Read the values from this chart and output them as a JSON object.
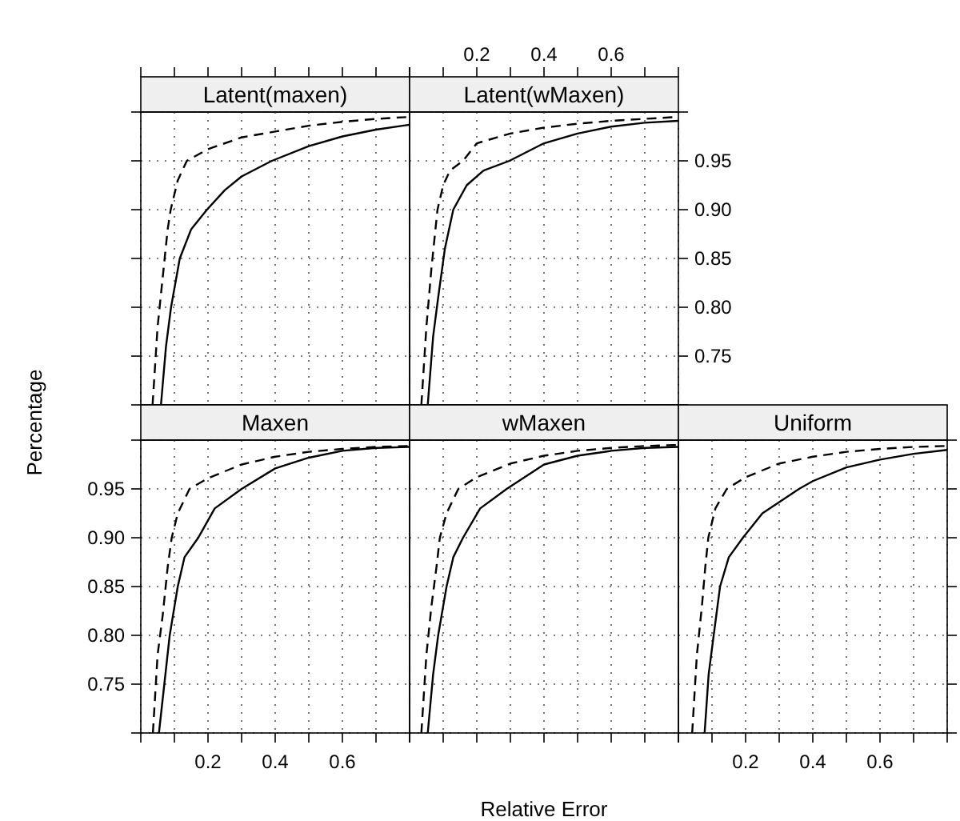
{
  "chart_data": [
    {
      "type": "line",
      "title": "Latent(maxen)",
      "xlim": [
        0,
        0.8
      ],
      "xticks": [
        0,
        0.1,
        0.2,
        0.3,
        0.4,
        0.5,
        0.6,
        0.7,
        0.8
      ],
      "ylim": [
        0.7,
        1.0
      ],
      "yticks": [
        0.7,
        0.75,
        0.8,
        0.85,
        0.9,
        0.95,
        1.0
      ],
      "tick_labels": false,
      "grid": true,
      "series": [
        {
          "color": "#000000",
          "line_style": "solid",
          "x": [
            0.06,
            0.075,
            0.09,
            0.116,
            0.15,
            0.197,
            0.25,
            0.3,
            0.39,
            0.5,
            0.6,
            0.7,
            0.8
          ],
          "values": [
            0.7,
            0.76,
            0.8,
            0.85,
            0.88,
            0.9,
            0.92,
            0.934,
            0.95,
            0.965,
            0.975,
            0.982,
            0.987
          ]
        },
        {
          "color": "#000000",
          "line_style": "dashed",
          "x": [
            0.035,
            0.05,
            0.065,
            0.08,
            0.089,
            0.11,
            0.137,
            0.2,
            0.3,
            0.4,
            0.5,
            0.6,
            0.7,
            0.8
          ],
          "values": [
            0.7,
            0.78,
            0.83,
            0.88,
            0.9,
            0.93,
            0.95,
            0.962,
            0.974,
            0.98,
            0.986,
            0.99,
            0.993,
            0.995
          ]
        }
      ]
    },
    {
      "type": "line",
      "title": "Latent(wMaxen)",
      "xlim": [
        0,
        0.8
      ],
      "xticks": [
        {
          "value": 0,
          "label": null
        },
        {
          "value": 0.1,
          "label": null
        },
        0.2,
        {
          "value": 0.3,
          "label": null
        },
        0.4,
        {
          "value": 0.5,
          "label": null
        },
        0.6,
        {
          "value": 0.7,
          "label": null
        },
        {
          "value": 0.8,
          "label": null
        }
      ],
      "ylim": [
        0.7,
        1.0
      ],
      "yticks": [
        {
          "value": 0.7,
          "label": null
        },
        0.75,
        {
          "value": 0.8,
          "label": "0.80"
        },
        0.85,
        {
          "value": 0.9,
          "label": "0.90"
        },
        0.95,
        {
          "value": 1.0,
          "label": null
        }
      ],
      "grid": true,
      "series": [
        {
          "color": "#000000",
          "line_style": "solid",
          "x": [
            0.054,
            0.07,
            0.085,
            0.105,
            0.13,
            0.17,
            0.22,
            0.297,
            0.4,
            0.5,
            0.6,
            0.7,
            0.8
          ],
          "values": [
            0.7,
            0.77,
            0.81,
            0.86,
            0.9,
            0.925,
            0.94,
            0.95,
            0.968,
            0.978,
            0.985,
            0.989,
            0.991
          ]
        },
        {
          "color": "#000000",
          "line_style": "dashed",
          "x": [
            0.035,
            0.05,
            0.065,
            0.083,
            0.1,
            0.12,
            0.159,
            0.2,
            0.3,
            0.4,
            0.5,
            0.6,
            0.7,
            0.8
          ],
          "values": [
            0.7,
            0.78,
            0.84,
            0.9,
            0.925,
            0.94,
            0.95,
            0.968,
            0.978,
            0.984,
            0.988,
            0.991,
            0.993,
            0.995
          ]
        }
      ]
    },
    {
      "type": "line",
      "title": "Maxen",
      "ylabel": "Percentage",
      "xlim": [
        0,
        0.8
      ],
      "xticks": [
        {
          "value": 0,
          "label": null
        },
        {
          "value": 0.1,
          "label": null
        },
        0.2,
        {
          "value": 0.3,
          "label": null
        },
        0.4,
        {
          "value": 0.5,
          "label": null
        },
        0.6,
        {
          "value": 0.7,
          "label": null
        },
        {
          "value": 0.8,
          "label": null
        }
      ],
      "ylim": [
        0.7,
        1.0
      ],
      "yticks": [
        {
          "value": 0.7,
          "label": null
        },
        0.75,
        {
          "value": 0.8,
          "label": "0.80"
        },
        0.85,
        {
          "value": 0.9,
          "label": "0.90"
        },
        0.95,
        {
          "value": 1.0,
          "label": null
        }
      ],
      "grid": true,
      "series": [
        {
          "color": "#000000",
          "line_style": "solid",
          "x": [
            0.054,
            0.07,
            0.086,
            0.11,
            0.13,
            0.171,
            0.22,
            0.3,
            0.4,
            0.5,
            0.6,
            0.7,
            0.8
          ],
          "values": [
            0.7,
            0.75,
            0.8,
            0.85,
            0.88,
            0.9,
            0.93,
            0.95,
            0.971,
            0.982,
            0.989,
            0.992,
            0.993
          ]
        },
        {
          "color": "#000000",
          "line_style": "dashed",
          "x": [
            0.036,
            0.05,
            0.065,
            0.08,
            0.092,
            0.11,
            0.145,
            0.2,
            0.3,
            0.4,
            0.5,
            0.6,
            0.7,
            0.8
          ],
          "values": [
            0.7,
            0.78,
            0.82,
            0.87,
            0.9,
            0.925,
            0.95,
            0.961,
            0.975,
            0.983,
            0.988,
            0.991,
            0.993,
            0.994
          ]
        }
      ]
    },
    {
      "type": "line",
      "title": "wMaxen",
      "xlabel": "Relative Error",
      "xlim": [
        0,
        0.8
      ],
      "xticks": [
        0,
        0.1,
        0.2,
        0.3,
        0.4,
        0.5,
        0.6,
        0.7,
        0.8
      ],
      "ylim": [
        0.7,
        1.0
      ],
      "yticks": [
        0.7,
        0.75,
        0.8,
        0.85,
        0.9,
        0.95,
        1.0
      ],
      "tick_labels": false,
      "grid": true,
      "series": [
        {
          "color": "#000000",
          "line_style": "solid",
          "x": [
            0.054,
            0.07,
            0.085,
            0.11,
            0.13,
            0.159,
            0.21,
            0.289,
            0.4,
            0.5,
            0.6,
            0.7,
            0.8
          ],
          "values": [
            0.7,
            0.76,
            0.8,
            0.85,
            0.88,
            0.9,
            0.93,
            0.95,
            0.975,
            0.984,
            0.989,
            0.992,
            0.993
          ]
        },
        {
          "color": "#000000",
          "line_style": "dashed",
          "x": [
            0.035,
            0.05,
            0.065,
            0.08,
            0.09,
            0.11,
            0.145,
            0.2,
            0.3,
            0.4,
            0.5,
            0.6,
            0.7,
            0.8
          ],
          "values": [
            0.7,
            0.78,
            0.83,
            0.87,
            0.9,
            0.925,
            0.95,
            0.962,
            0.976,
            0.984,
            0.989,
            0.992,
            0.994,
            0.995
          ]
        }
      ]
    },
    {
      "type": "line",
      "title": "Uniform",
      "xlim": [
        0,
        0.8
      ],
      "xticks": [
        {
          "value": 0,
          "label": null
        },
        {
          "value": 0.1,
          "label": null
        },
        0.2,
        {
          "value": 0.3,
          "label": null
        },
        0.4,
        {
          "value": 0.5,
          "label": null
        },
        0.6,
        {
          "value": 0.7,
          "label": null
        },
        {
          "value": 0.8,
          "label": null
        }
      ],
      "ylim": [
        0.7,
        1.0
      ],
      "yticks": [
        0.7,
        0.75,
        0.8,
        0.85,
        0.9,
        0.95,
        1.0
      ],
      "tick_labels": "x",
      "grid": true,
      "series": [
        {
          "color": "#000000",
          "line_style": "solid",
          "x": [
            0.078,
            0.09,
            0.105,
            0.124,
            0.15,
            0.192,
            0.25,
            0.359,
            0.4,
            0.5,
            0.6,
            0.7,
            0.8
          ],
          "values": [
            0.7,
            0.76,
            0.8,
            0.85,
            0.88,
            0.9,
            0.925,
            0.95,
            0.958,
            0.972,
            0.98,
            0.986,
            0.99
          ]
        },
        {
          "color": "#000000",
          "line_style": "dashed",
          "x": [
            0.041,
            0.055,
            0.07,
            0.08,
            0.089,
            0.11,
            0.144,
            0.2,
            0.3,
            0.4,
            0.5,
            0.6,
            0.7,
            0.8
          ],
          "values": [
            0.7,
            0.78,
            0.83,
            0.87,
            0.9,
            0.93,
            0.95,
            0.962,
            0.976,
            0.983,
            0.988,
            0.991,
            0.993,
            0.994
          ]
        }
      ]
    }
  ]
}
